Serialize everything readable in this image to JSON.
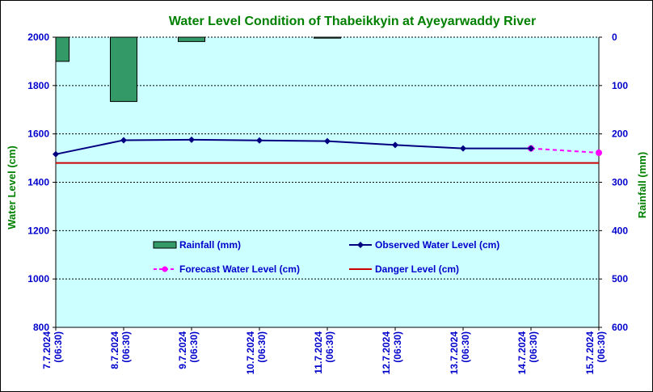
{
  "chart_data": {
    "type": "bar+line",
    "title": "Water Level Condition of Thabeikkyin at Ayeyarwaddy River",
    "ylabel": "Water Level (cm)",
    "y2label": "Rainfall (mm)",
    "ylim": [
      800,
      2000
    ],
    "y2lim": [
      0,
      600
    ],
    "y2_inverted": true,
    "yticks": [
      "800",
      "1000",
      "1200",
      "1400",
      "1600",
      "1800",
      "2000"
    ],
    "y2ticks": [
      "0",
      "100",
      "200",
      "300",
      "400",
      "500",
      "600"
    ],
    "categories": [
      [
        "7.7.2024",
        "(06:30)"
      ],
      [
        "8.7.2024",
        "(06:30)"
      ],
      [
        "9.7.2024",
        "(06:30)"
      ],
      [
        "10.7.2024",
        "(06:30)"
      ],
      [
        "11.7.2024",
        "(06:30)"
      ],
      [
        "12.7.2024",
        "(06:30)"
      ],
      [
        "13.7.2024",
        "(06:30)"
      ],
      [
        "14.7.2024",
        "(06:30)"
      ],
      [
        "15.7.2024",
        "(06:30)"
      ]
    ],
    "series": [
      {
        "name": "Rainfall (mm)",
        "kind": "bar",
        "axis": "right",
        "color": "#339966",
        "values": [
          50,
          133,
          9,
          null,
          2,
          null,
          null,
          null,
          null
        ]
      },
      {
        "name": "Observed Water Level (cm)",
        "kind": "line",
        "axis": "left",
        "color": "#000080",
        "values": [
          1516,
          1574,
          1576,
          1573,
          1570,
          1554,
          1540,
          1540,
          null
        ]
      },
      {
        "name": "Forecast Water Level (cm)",
        "kind": "dashed-line",
        "axis": "left",
        "color": "#ff00ff",
        "values": [
          null,
          null,
          null,
          null,
          null,
          null,
          null,
          1540,
          1522
        ]
      },
      {
        "name": "Danger Level (cm)",
        "kind": "line",
        "axis": "left",
        "color": "#cc0000",
        "values": [
          1480,
          1480,
          1480,
          1480,
          1480,
          1480,
          1480,
          1480,
          1480
        ]
      }
    ],
    "grid": "horizontal dashed",
    "legend": "inside plot, center",
    "colors": {
      "title": "#008000",
      "axis_label": "#008000",
      "tick_label": "#0000cc",
      "plot_background": "#ccffff"
    }
  }
}
